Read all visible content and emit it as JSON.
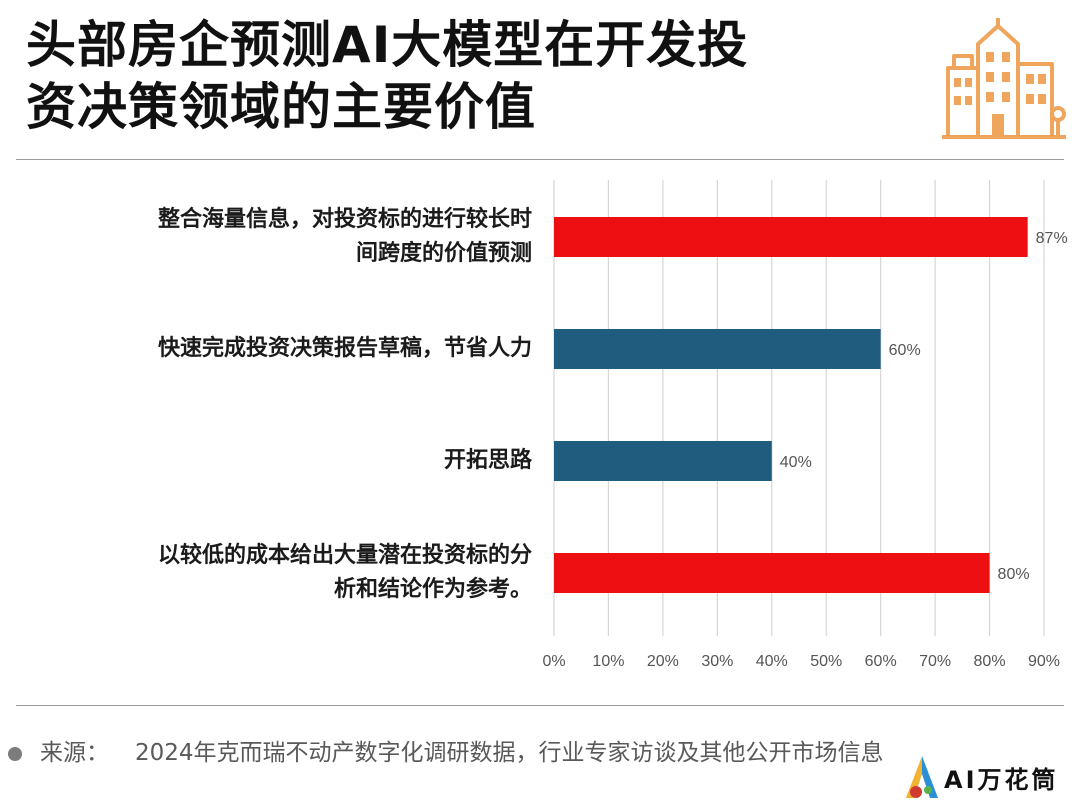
{
  "title_lines": [
    "头部房企预测AI大模型在开发投",
    "资决策领域的主要价值"
  ],
  "source": {
    "label": "来源：",
    "text": "2024年克而瑞不动产数字化调研数据，行业专家访谈及其他公开市场信息"
  },
  "brand": {
    "text": "AI万花筒"
  },
  "icons": {
    "header": "city-buildings-icon",
    "brand": "ai-brand-logo-icon",
    "bullet": "bullet-dot-icon"
  },
  "colors": {
    "highlight": "#ee0f12",
    "normal": "#1f5c7e",
    "axis": "#d6d6d6",
    "tick_text": "#555555"
  },
  "chart_data": {
    "type": "bar",
    "orientation": "horizontal",
    "categories": [
      [
        "整合海量信息，对投资标的进行较长时",
        "间跨度的价值预测"
      ],
      [
        "快速完成投资决策报告草稿，节省人力"
      ],
      [
        "开拓思路"
      ],
      [
        "以较低的成本给出大量潜在投资标的分",
        "析和结论作为参考。"
      ]
    ],
    "values": [
      87,
      60,
      40,
      80
    ],
    "value_labels": [
      "87%",
      "60%",
      "40%",
      "80%"
    ],
    "bar_colors": [
      "#ee0f12",
      "#1f5c7e",
      "#1f5c7e",
      "#ee0f12"
    ],
    "xlim": [
      0,
      90
    ],
    "xticks": [
      0,
      10,
      20,
      30,
      40,
      50,
      60,
      70,
      80,
      90
    ],
    "xtick_labels": [
      "0%",
      "10%",
      "20%",
      "30%",
      "40%",
      "50%",
      "60%",
      "70%",
      "80%",
      "90%"
    ],
    "grid": true,
    "legend": false
  }
}
